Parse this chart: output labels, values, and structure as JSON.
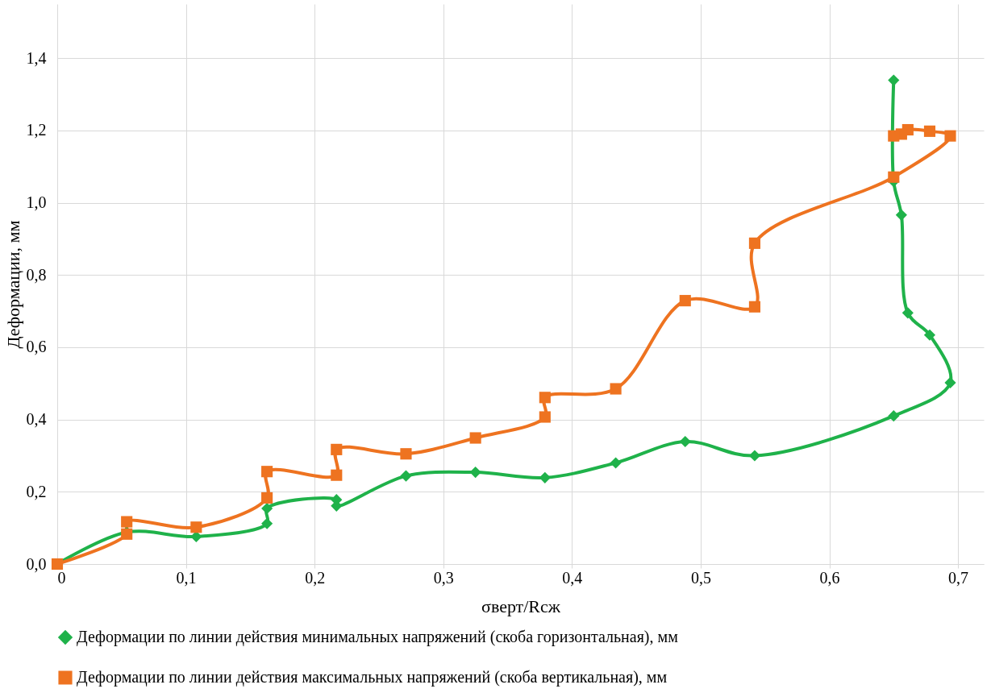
{
  "chart_data": {
    "type": "line",
    "xlabel": "σверт/Rсж",
    "ylabel": "Деформации, мм",
    "xlim": [
      0,
      0.72
    ],
    "ylim": [
      0,
      1.55
    ],
    "xticks": [
      {
        "value": 0,
        "label": "0"
      },
      {
        "value": 0.1,
        "label": "0,1"
      },
      {
        "value": 0.2,
        "label": "0,2"
      },
      {
        "value": 0.3,
        "label": "0,3"
      },
      {
        "value": 0.4,
        "label": "0,4"
      },
      {
        "value": 0.5,
        "label": "0,5"
      },
      {
        "value": 0.6,
        "label": "0,6"
      },
      {
        "value": 0.7,
        "label": "0,7"
      }
    ],
    "yticks": [
      {
        "value": 0,
        "label": "0,0"
      },
      {
        "value": 0.2,
        "label": "0,2"
      },
      {
        "value": 0.4,
        "label": "0,4"
      },
      {
        "value": 0.6,
        "label": "0,6"
      },
      {
        "value": 0.8,
        "label": "0,8"
      },
      {
        "value": 1.0,
        "label": "1,0"
      },
      {
        "value": 1.2,
        "label": "1,2"
      },
      {
        "value": 1.4,
        "label": "1,4"
      }
    ],
    "grid": true,
    "legend": "bottom",
    "line_style": "solid",
    "series": [
      {
        "name": "Деформации по линии действия минимальных напряжений (скоба горизонтальная), мм",
        "color": "#1fb24a",
        "marker": "diamond",
        "x": [
          0,
          0.054,
          0.108,
          0.163,
          0.163,
          0.217,
          0.217,
          0.271,
          0.325,
          0.379,
          0.434,
          0.488,
          0.542,
          0.65,
          0.694,
          0.678,
          0.661,
          0.656,
          0.65,
          0.65
        ],
        "values": [
          0,
          0.088,
          0.076,
          0.112,
          0.154,
          0.178,
          0.161,
          0.244,
          0.254,
          0.239,
          0.28,
          0.339,
          0.3,
          0.41,
          0.502,
          0.634,
          0.695,
          0.966,
          1.059,
          1.339
        ]
      },
      {
        "name": "Деформации по линии действия максимальных напряжений (скоба вертикальная), мм",
        "color": "#ee7320",
        "marker": "square",
        "x": [
          0,
          0.054,
          0.054,
          0.108,
          0.163,
          0.163,
          0.217,
          0.217,
          0.271,
          0.325,
          0.379,
          0.379,
          0.434,
          0.488,
          0.542,
          0.542,
          0.65,
          0.694,
          0.678,
          0.661,
          0.656,
          0.65
        ],
        "values": [
          0,
          0.083,
          0.117,
          0.102,
          0.183,
          0.256,
          0.246,
          0.317,
          0.305,
          0.349,
          0.407,
          0.461,
          0.485,
          0.729,
          0.712,
          0.888,
          1.071,
          1.185,
          1.198,
          1.202,
          1.19,
          1.185
        ]
      }
    ]
  }
}
